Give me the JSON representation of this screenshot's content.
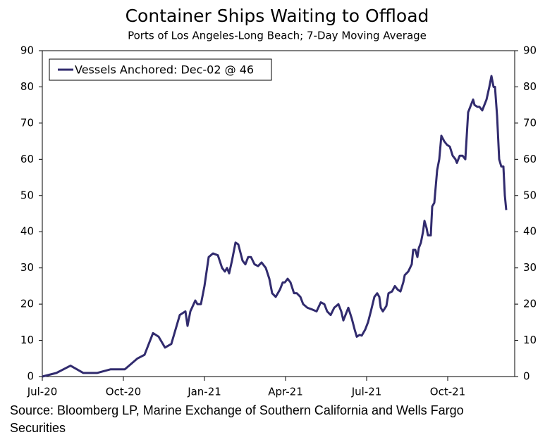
{
  "chart_data": {
    "type": "line",
    "title": "Container Ships Waiting to Offload",
    "subtitle": "Ports of Los Angeles-Long Beach; 7-Day Moving Average",
    "source": "Source: Bloomberg LP, Marine Exchange of Southern California and Wells Fargo Securities",
    "legend": "upper left",
    "x": [
      2020.5,
      2020.5435,
      2020.587,
      2020.6261,
      2020.6696,
      2020.7109,
      2020.7543,
      2020.7935,
      2020.8152,
      2020.8413,
      2020.8587,
      2020.8783,
      2020.8978,
      2020.9239,
      2020.9413,
      2020.9478,
      2020.9565,
      2020.9717,
      2020.9783,
      2020.9891,
      2021.0,
      2021.013,
      2021.0261,
      2021.0413,
      2021.0543,
      2021.063,
      2021.0696,
      2021.0761,
      2021.0848,
      2021.0957,
      2021.1043,
      2021.1174,
      2021.1261,
      2021.1348,
      2021.1435,
      2021.1543,
      2021.1652,
      2021.1761,
      2021.1891,
      2021.2,
      2021.2087,
      2021.2196,
      2021.2326,
      2021.2413,
      2021.2478,
      2021.2565,
      2021.2652,
      2021.2761,
      2021.2848,
      2021.2957,
      2021.3043,
      2021.3174,
      2021.3326,
      2021.3457,
      2021.3587,
      2021.3696,
      2021.3783,
      2021.3891,
      2021.4,
      2021.413,
      2021.4217,
      2021.4283,
      2021.437,
      2021.4435,
      2021.4543,
      2021.463,
      2021.4696,
      2021.4783,
      2021.4848,
      2021.4957,
      2021.5043,
      2021.513,
      2021.5239,
      2021.5326,
      2021.5391,
      2021.5435,
      2021.55,
      2021.5609,
      2021.5674,
      2021.5783,
      2021.587,
      2021.5957,
      2021.6043,
      2021.613,
      2021.6174,
      2021.6283,
      2021.6391,
      2021.6435,
      2021.65,
      2021.6565,
      2021.6609,
      2021.6674,
      2021.6739,
      2021.6783,
      2021.6848,
      2021.6891,
      2021.6978,
      2021.7022,
      2021.7087,
      2021.7174,
      2021.7239,
      2021.7304,
      2021.7391,
      2021.7478,
      2021.7565,
      2021.7652,
      2021.7739,
      2021.7783,
      2021.787,
      2021.7957,
      2021.8043,
      2021.813,
      2021.8217,
      2021.8283,
      2021.8326,
      2021.8413,
      2021.8478,
      2021.8565,
      2021.863,
      2021.8696,
      2021.8783,
      2021.8848,
      2021.8913,
      2021.8957,
      2021.9022,
      2021.9087,
      2021.9152,
      2021.9217,
      2021.9261,
      2021.9304
    ],
    "series": [
      {
        "name": "Vessels Anchored: Dec-02 @ 46",
        "color": "#312b6e",
        "values": [
          0,
          1,
          3,
          1,
          1,
          2,
          2,
          5,
          6,
          12,
          11,
          8,
          9,
          17,
          18,
          14,
          18,
          21,
          20,
          20,
          25,
          33,
          34,
          33.5,
          30,
          29,
          30,
          28.5,
          32,
          37,
          36.5,
          32,
          31,
          33,
          33,
          31,
          30.5,
          31.5,
          30,
          27,
          23,
          22,
          24,
          26,
          26,
          27,
          26,
          23,
          23,
          22,
          20,
          19,
          18.5,
          18,
          20.5,
          20,
          18,
          17,
          19,
          20,
          18,
          15.5,
          17.5,
          19,
          16,
          13,
          11,
          11.5,
          11.3,
          13,
          15,
          18,
          22,
          23,
          22,
          19,
          18,
          19.5,
          23,
          23.5,
          25,
          24,
          23.5,
          26,
          28,
          29,
          31,
          35,
          35,
          33,
          35.5,
          37,
          40,
          43,
          41,
          39,
          39,
          47,
          48,
          57,
          60,
          66.5,
          65,
          64,
          63.5,
          61,
          60,
          59,
          61,
          61,
          60,
          73,
          75,
          76.5,
          75,
          74.5,
          74.5,
          73.5,
          75,
          76.5,
          80,
          83,
          80,
          80,
          72,
          60,
          58,
          58,
          50,
          46
        ]
      }
    ],
    "xlim": [
      2020.5,
      2021.9565
    ],
    "xticks": [
      {
        "value": 2020.5,
        "label": "Jul-20"
      },
      {
        "value": 2020.75,
        "label": "Oct-20"
      },
      {
        "value": 2021.0,
        "label": "Jan-21"
      },
      {
        "value": 2021.25,
        "label": "Apr-21"
      },
      {
        "value": 2021.5,
        "label": "Jul-21"
      },
      {
        "value": 2021.75,
        "label": "Oct-21"
      }
    ],
    "ylim": [
      0,
      90
    ],
    "yticks": [
      0,
      10,
      20,
      30,
      40,
      50,
      60,
      70,
      80,
      90
    ],
    "y2lim": [
      0,
      90
    ],
    "y2ticks": [
      0,
      10,
      20,
      30,
      40,
      50,
      60,
      70,
      80,
      90
    ],
    "grid": false
  }
}
